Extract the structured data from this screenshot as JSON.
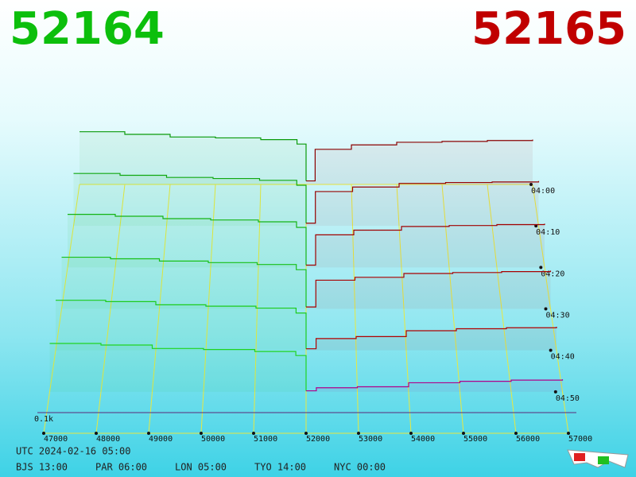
{
  "chart_data": {
    "type": "depth3d",
    "bid_price": "52164",
    "ask_price": "52165",
    "bid_color": "#0cbf0c",
    "ask_color": "#c00000",
    "times": [
      "04:00",
      "04:10",
      "04:20",
      "04:30",
      "04:40",
      "04:50"
    ],
    "xlim": [
      47000,
      57000
    ],
    "xticks": [
      47000,
      48000,
      49000,
      50000,
      51000,
      52000,
      53000,
      54000,
      55000,
      56000,
      57000
    ],
    "yticks": [
      {
        "value": 100,
        "label": "0.1k"
      }
    ],
    "bid_x": [
      47000,
      48000,
      49000,
      50000,
      51000,
      51800,
      52000
    ],
    "ask_x": [
      52000,
      52200,
      53000,
      54000,
      55000,
      56000,
      57000
    ],
    "bids": [
      {
        "color": "#0a9a0a",
        "values": [
          300,
          285,
          270,
          265,
          255,
          230,
          20
        ]
      },
      {
        "color": "#10a810",
        "values": [
          290,
          280,
          268,
          262,
          252,
          225,
          15
        ]
      },
      {
        "color": "#14b414",
        "values": [
          285,
          275,
          262,
          255,
          245,
          215,
          12
        ]
      },
      {
        "color": "#18c018",
        "values": [
          270,
          262,
          250,
          242,
          232,
          205,
          10
        ]
      },
      {
        "color": "#1ccb1c",
        "values": [
          255,
          248,
          232,
          225,
          215,
          190,
          8
        ]
      },
      {
        "color": "#20d420",
        "values": [
          240,
          232,
          215,
          210,
          200,
          180,
          5
        ]
      }
    ],
    "asks": [
      {
        "color": "#8a0000",
        "values": [
          20,
          200,
          225,
          240,
          245,
          250,
          255
        ]
      },
      {
        "color": "#960000",
        "values": [
          15,
          190,
          215,
          235,
          240,
          243,
          248
        ]
      },
      {
        "color": "#a00000",
        "values": [
          12,
          175,
          200,
          220,
          225,
          230,
          235
        ]
      },
      {
        "color": "#a80000",
        "values": [
          10,
          150,
          165,
          185,
          190,
          195,
          200
        ]
      },
      {
        "color": "#b00000",
        "values": [
          8,
          60,
          70,
          100,
          110,
          115,
          120
        ]
      },
      {
        "color": "#b0008a",
        "values": [
          5,
          20,
          25,
          45,
          52,
          58,
          62
        ]
      }
    ],
    "clock": "UTC 2024-02-16 05:00",
    "zones": [
      "BJS 13:00",
      "PAR 06:00",
      "LON 05:00",
      "TYO 14:00",
      "NYC 00:00"
    ]
  }
}
